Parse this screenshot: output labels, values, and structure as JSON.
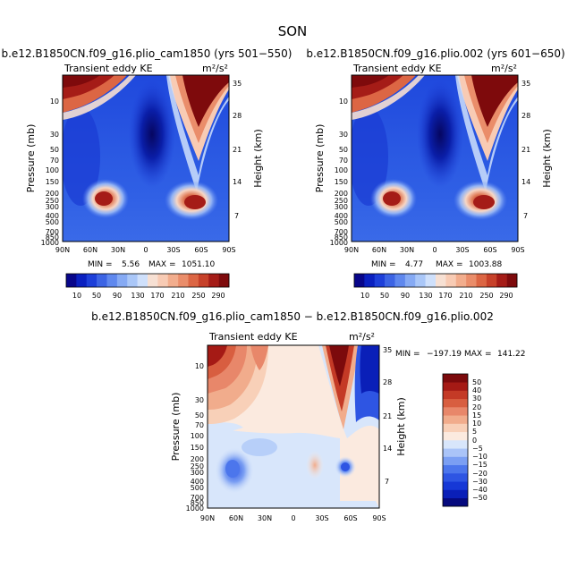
{
  "figure": {
    "title": "SON"
  },
  "colors": {
    "positive_scale": [
      "#08068a",
      "#0a20c0",
      "#1d3fd9",
      "#3c64e4",
      "#5f88ee",
      "#86aaf4",
      "#aac7f8",
      "#cfe0fb",
      "#f7e0d3",
      "#f8cbb4",
      "#f2ad8d",
      "#ea8d6a",
      "#dc6644",
      "#c7412a",
      "#a51c17",
      "#7e0a0c"
    ],
    "diff_scale": [
      "#060a7e",
      "#0a1fb8",
      "#1638d6",
      "#2e55e3",
      "#4c76ec",
      "#7b9ff3",
      "#aac4f8",
      "#d8e6fb",
      "#fbeadf",
      "#f8d0b8",
      "#f1ac8c",
      "#e8876a",
      "#d85e40",
      "#c43a26",
      "#a51a15",
      "#7c0a0c"
    ]
  },
  "chart_data": [
    {
      "type": "heatmap",
      "title": "b.e12.B1850CN.f09_g16.plio_cam1850 (yrs 501−550)",
      "left_label": "Transient eddy KE",
      "units_label": "m²/s²",
      "xlabel": "",
      "ylabel": "Pressure (mb)",
      "y2label": "Height (km)",
      "x_ticks": [
        "90N",
        "60N",
        "30N",
        "0",
        "30S",
        "60S",
        "90S"
      ],
      "y_ticks": [
        "10",
        "30",
        "50",
        "70",
        "100",
        "150",
        "200",
        "250",
        "300",
        "400",
        "500",
        "700",
        "850",
        "1000"
      ],
      "y2_ticks": [
        "35",
        "28",
        "21",
        "14",
        "7"
      ],
      "stats": {
        "min_label": "MIN =",
        "min": "5.56",
        "max_label": "MAX =",
        "max": "1051.10"
      },
      "colorbar": {
        "labels": [
          "10",
          "50",
          "90",
          "130",
          "170",
          "210",
          "250",
          "290"
        ]
      },
      "features": [
        {
          "name": "upper-left high",
          "lat": 82,
          "p": 5,
          "value": 290
        },
        {
          "name": "subtropical jet NH",
          "lat": 45,
          "p": 250,
          "value": 300
        },
        {
          "name": "subtropical jet SH",
          "lat": -45,
          "p": 280,
          "value": 300
        },
        {
          "name": "upper-right polar high",
          "lat": -65,
          "p": 5,
          "value": 300
        },
        {
          "name": "tropical stratosphere low",
          "lat": 0,
          "p": 30,
          "value": 10
        }
      ]
    },
    {
      "type": "heatmap",
      "title": "b.e12.B1850CN.f09_g16.plio.002 (yrs 601−650)",
      "left_label": "Transient eddy KE",
      "units_label": "m²/s²",
      "xlabel": "",
      "ylabel": "Pressure (mb)",
      "y2label": "Height (km)",
      "x_ticks": [
        "90N",
        "60N",
        "30N",
        "0",
        "30S",
        "60S",
        "90S"
      ],
      "y_ticks": [
        "10",
        "30",
        "50",
        "70",
        "100",
        "150",
        "200",
        "250",
        "300",
        "400",
        "500",
        "700",
        "850",
        "1000"
      ],
      "y2_ticks": [
        "35",
        "28",
        "21",
        "14",
        "7"
      ],
      "stats": {
        "min_label": "MIN =",
        "min": "4.77",
        "max_label": "MAX =",
        "max": "1003.88"
      },
      "colorbar": {
        "labels": [
          "10",
          "50",
          "90",
          "130",
          "170",
          "210",
          "250",
          "290"
        ]
      },
      "features": [
        {
          "name": "upper-left high",
          "lat": 82,
          "p": 5,
          "value": 290
        },
        {
          "name": "subtropical jet NH",
          "lat": 45,
          "p": 250,
          "value": 300
        },
        {
          "name": "subtropical jet SH",
          "lat": -45,
          "p": 280,
          "value": 300
        },
        {
          "name": "upper-right polar high",
          "lat": -65,
          "p": 5,
          "value": 300
        },
        {
          "name": "tropical stratosphere low",
          "lat": 0,
          "p": 30,
          "value": 10
        }
      ]
    },
    {
      "type": "heatmap",
      "title": "b.e12.B1850CN.f09_g16.plio_cam1850 − b.e12.B1850CN.f09_g16.plio.002",
      "left_label": "Transient eddy KE",
      "units_label": "m²/s²",
      "xlabel": "",
      "ylabel": "Pressure (mb)",
      "y2label": "Height (km)",
      "x_ticks": [
        "90N",
        "60N",
        "30N",
        "0",
        "30S",
        "60S",
        "90S"
      ],
      "y_ticks": [
        "10",
        "30",
        "50",
        "70",
        "100",
        "150",
        "200",
        "250",
        "300",
        "400",
        "500",
        "700",
        "850",
        "1000"
      ],
      "y2_ticks": [
        "35",
        "28",
        "21",
        "14",
        "7"
      ],
      "stats": {
        "min_label": "MIN =",
        "min": "−197.19",
        "max_label": "MAX =",
        "max": "141.22"
      },
      "colorbar": {
        "labels": [
          "50",
          "40",
          "30",
          "20",
          "15",
          "10",
          "5",
          "0",
          "−5",
          "−10",
          "−15",
          "−20",
          "−30",
          "−40",
          "−50"
        ]
      },
      "features": [
        {
          "name": "upper-left positive",
          "lat": 80,
          "p": 5,
          "value": 55
        },
        {
          "name": "SH polar positive",
          "lat": -55,
          "p": 10,
          "value": 55
        },
        {
          "name": "SH polar negative",
          "lat": -75,
          "p": 20,
          "value": -55
        },
        {
          "name": "NH jet negative",
          "lat": 60,
          "p": 300,
          "value": -20
        },
        {
          "name": "SH jet negative",
          "lat": -60,
          "p": 300,
          "value": -20
        }
      ]
    }
  ]
}
